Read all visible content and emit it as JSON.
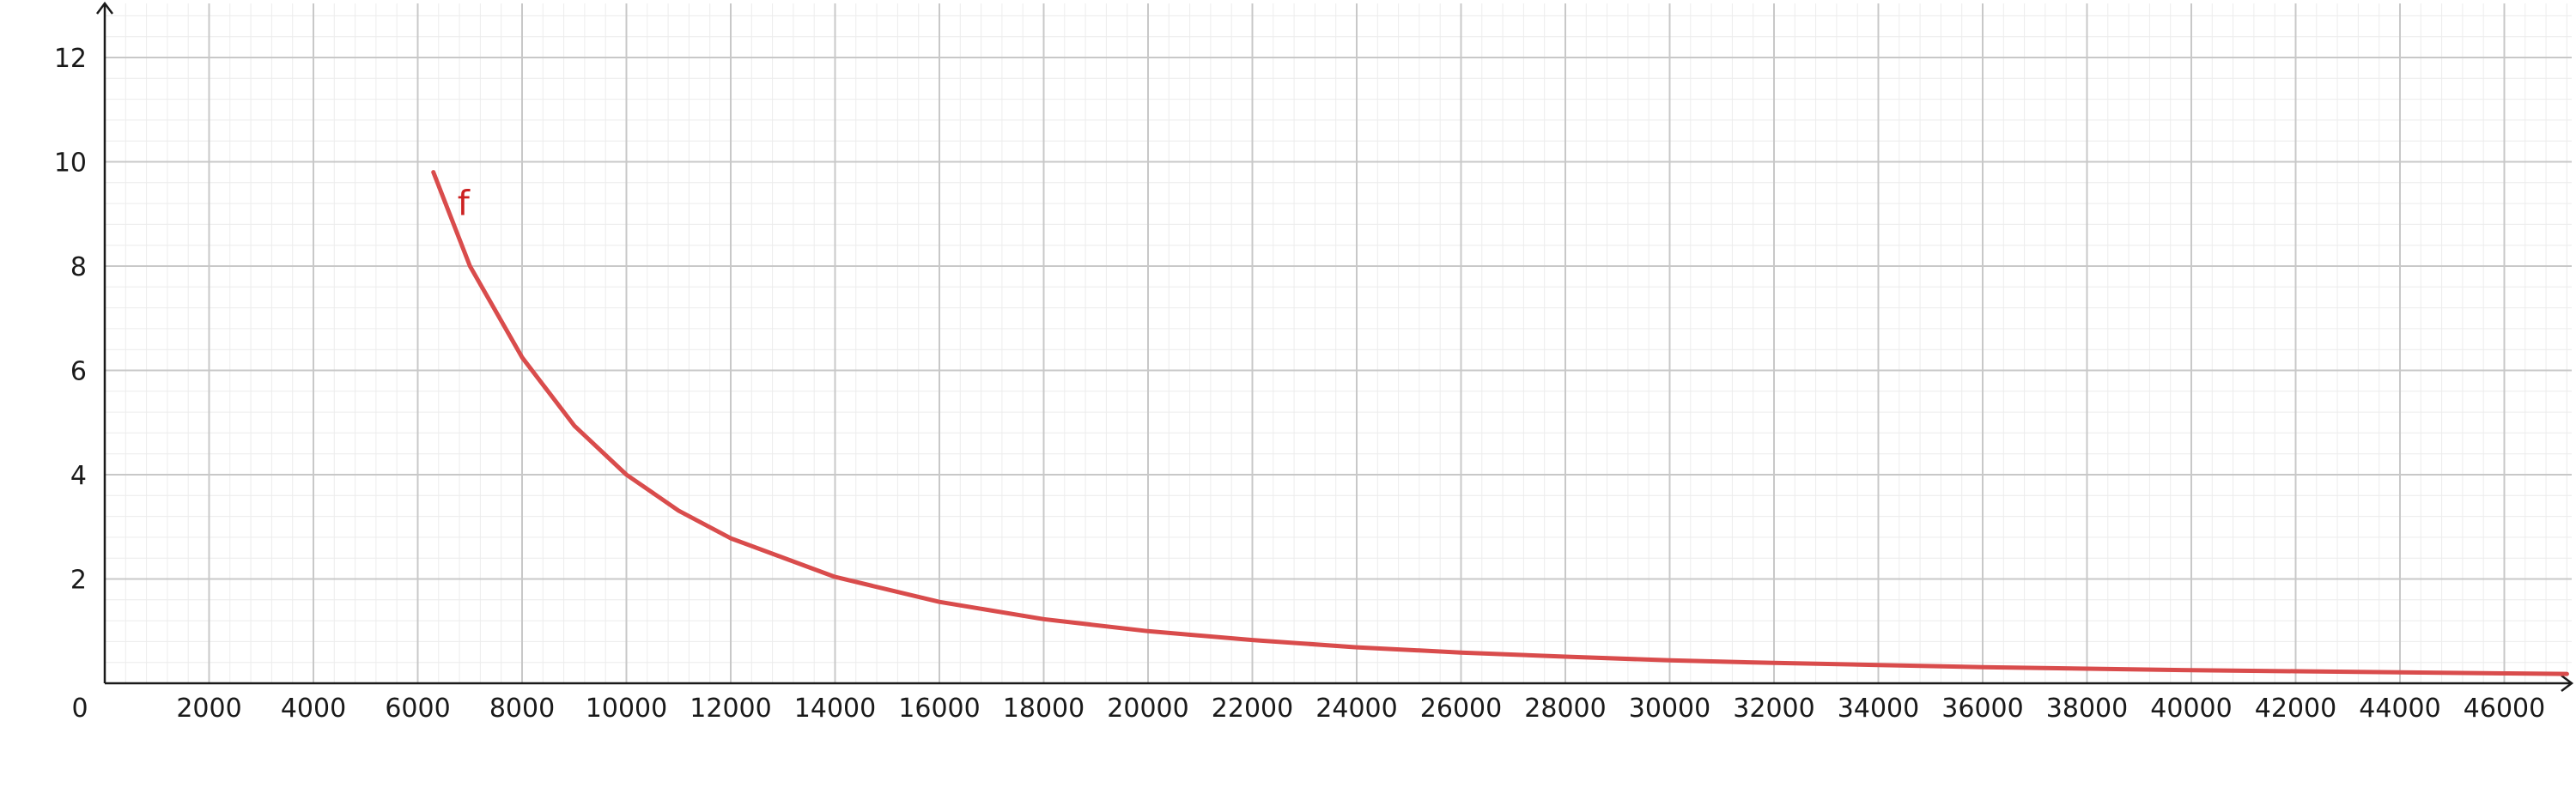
{
  "chart_data": {
    "type": "line",
    "title": "",
    "xlabel": "",
    "ylabel": "",
    "xlim": [
      0,
      47200
    ],
    "ylim": [
      0,
      13
    ],
    "x_ticks": [
      2000,
      4000,
      6000,
      8000,
      10000,
      12000,
      14000,
      16000,
      18000,
      20000,
      22000,
      24000,
      26000,
      28000,
      30000,
      32000,
      34000,
      36000,
      38000,
      40000,
      42000,
      44000,
      46000
    ],
    "y_ticks": [
      2,
      4,
      6,
      8,
      10,
      12
    ],
    "origin_label": "0",
    "grid": true,
    "colors": {
      "curve": "#d94c4c",
      "curve_label": "#cc2222",
      "major_grid": "#c8c8c8",
      "minor_grid": "#ececec",
      "axis": "#1a1a1a"
    },
    "series": [
      {
        "name": "f",
        "x": [
          6300,
          7000,
          8000,
          9000,
          10000,
          11000,
          12000,
          14000,
          16000,
          18000,
          20000,
          22000,
          24000,
          26000,
          28000,
          30000,
          32000,
          34000,
          36000,
          38000,
          40000,
          42000,
          44000,
          46000,
          47200
        ],
        "y": [
          9.8,
          8.0,
          6.25,
          4.94,
          4.0,
          3.31,
          2.78,
          2.04,
          1.56,
          1.23,
          1.0,
          0.83,
          0.69,
          0.59,
          0.51,
          0.44,
          0.39,
          0.35,
          0.31,
          0.28,
          0.25,
          0.23,
          0.21,
          0.19,
          0.18
        ]
      }
    ]
  }
}
